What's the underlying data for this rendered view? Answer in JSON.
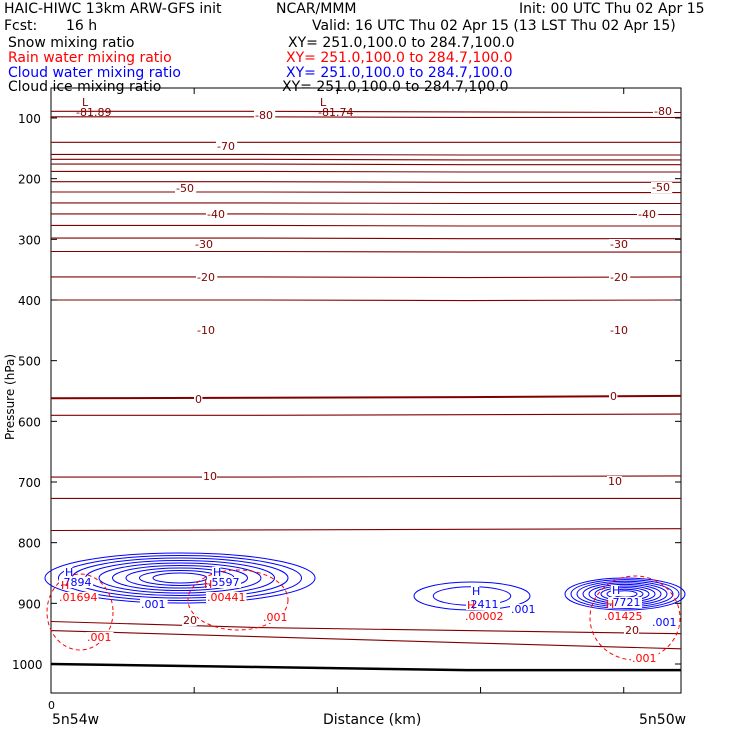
{
  "header": {
    "title": "HAIC-HIWC 13km ARW-GFS init",
    "org": "NCAR/MMM",
    "init": "Init: 00 UTC Thu 02 Apr 15",
    "fcst_label": "Fcst:",
    "fcst_value": "16 h",
    "valid": "Valid: 16 UTC Thu 02 Apr 15 (13 LST Thu 02 Apr 15)"
  },
  "legend": [
    {
      "name": "Snow mixing ratio",
      "xy": "XY= 251.0,100.0 to 284.7,100.0",
      "color": "#000000"
    },
    {
      "name": "Rain water mixing ratio",
      "xy": "XY= 251.0,100.0 to 284.7,100.0",
      "color": "#ff0000"
    },
    {
      "name": "Cloud water mixing ratio",
      "xy": "XY= 251.0,100.0 to 284.7,100.0",
      "color": "#0000ff"
    },
    {
      "name": "Cloud ice mixing ratio",
      "xy": "XY= 251.0,100.0 to 284.7,100.0",
      "color": "#000000"
    }
  ],
  "colors": {
    "temperature": "#800000",
    "cloud_water": "#0000ff",
    "rain": "#ff0000",
    "ground": "#000000"
  },
  "chart_data": {
    "type": "line",
    "ylabel": "Pressure (hPa)",
    "xlabel": "Distance (km)",
    "x_start_label": "5n54w",
    "x_end_label": "5n50w",
    "x_ticks": [
      "0"
    ],
    "y_ticks": [
      100,
      200,
      300,
      400,
      500,
      600,
      700,
      800,
      900,
      1000
    ],
    "ylim": [
      1050,
      50
    ],
    "temperature_isotherms": [
      {
        "level": -80,
        "p": [
          89,
          89,
          90,
          91
        ]
      },
      {
        "level": -75,
        "p": [
          98,
          98,
          99,
          99
        ]
      },
      {
        "level": -70,
        "p": [
          140,
          140,
          140,
          140
        ]
      },
      {
        "level": -65,
        "p": [
          160,
          160,
          161,
          161
        ]
      },
      {
        "level": -60,
        "p": [
          168,
          168,
          169,
          169
        ]
      },
      {
        "level": -55,
        "p": [
          176,
          176,
          177,
          177
        ]
      },
      {
        "level": -50,
        "p": [
          188,
          188,
          189,
          189
        ]
      },
      {
        "level": -45,
        "p": [
          205,
          205,
          206,
          206
        ]
      },
      {
        "level": -40,
        "p": [
          222,
          222,
          223,
          223
        ]
      },
      {
        "level": -35,
        "p": [
          240,
          240,
          241,
          241
        ]
      },
      {
        "level": -30,
        "p": [
          258,
          258,
          259,
          259
        ]
      },
      {
        "level": -25,
        "p": [
          277,
          277,
          278,
          278
        ]
      },
      {
        "level": -20,
        "p": [
          298,
          298,
          299,
          299
        ]
      },
      {
        "level": -15,
        "p": [
          320,
          320,
          321,
          321
        ]
      },
      {
        "level": -10,
        "p": [
          362,
          362,
          363,
          362
        ]
      },
      {
        "level": -5,
        "p": [
          400,
          400,
          401,
          400
        ]
      },
      {
        "level": 0,
        "p": [
          562,
          561,
          560,
          558
        ]
      },
      {
        "level": 5,
        "p": [
          590,
          590,
          589,
          588
        ]
      },
      {
        "level": 10,
        "p": [
          692,
          692,
          691,
          690
        ]
      },
      {
        "level": 15,
        "p": [
          727,
          727,
          727,
          727
        ]
      },
      {
        "level": 20,
        "p": [
          780,
          779,
          778,
          777
        ]
      },
      {
        "level": 25,
        "p": [
          930,
          940,
          945,
          950
        ]
      },
      {
        "level": 30,
        "p": [
          945,
          955,
          965,
          975
        ]
      }
    ],
    "isotherm_labels": [
      "-80",
      "-70",
      "-50",
      "-40",
      "-30",
      "-20",
      "-10",
      "0",
      "10",
      "20"
    ],
    "extrema": [
      {
        "kind": "L",
        "label": "-81.89"
      },
      {
        "kind": "L",
        "label": "-81.74"
      }
    ],
    "cloud_water_maxima": [
      {
        "label": "H",
        "value": ".7894"
      },
      {
        "label": "H",
        "value": ".5597"
      },
      {
        "label": "H",
        "value": ".2411"
      },
      {
        "label": "H",
        "value": ".7721"
      }
    ],
    "cloud_water_contour_labels": [
      ".001",
      ".001",
      ".001"
    ],
    "rain_maxima": [
      {
        "label": "H",
        "value": ".01694"
      },
      {
        "label": "H",
        "value": ".00441"
      },
      {
        "label": "H",
        "value": ".00002"
      },
      {
        "label": "H",
        "value": ".01425"
      }
    ],
    "rain_contour_labels": [
      ".001",
      ".001",
      ".001"
    ],
    "ground_pressure": [
      1000,
      1005,
      1010,
      1010
    ]
  }
}
